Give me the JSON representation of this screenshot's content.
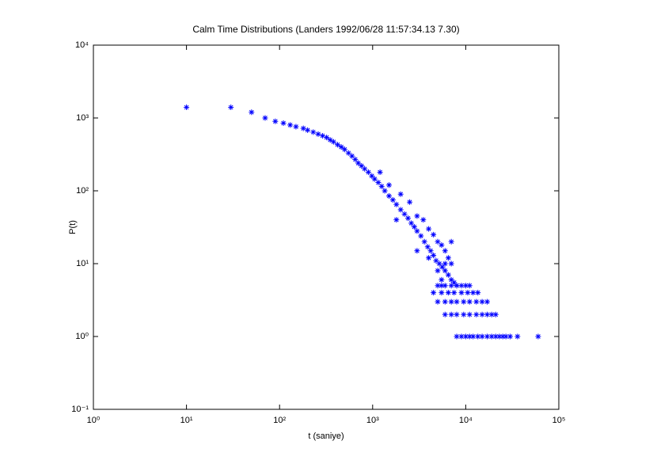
{
  "chart_data": {
    "type": "scatter",
    "title": "Calm Time Distributions (Landers 1992/06/28 11:57:34.13 7.30)",
    "xlabel": "t (saniye)",
    "ylabel": "P(t)",
    "xscale": "log",
    "yscale": "log",
    "grid": false,
    "color": "#0000ff",
    "marker": "asterisk",
    "xlim": [
      1,
      100000
    ],
    "ylim": [
      0.1,
      10000
    ],
    "xticks": [
      {
        "value": 1,
        "label": "10⁰"
      },
      {
        "value": 10,
        "label": "10¹"
      },
      {
        "value": 100,
        "label": "10²"
      },
      {
        "value": 1000,
        "label": "10³"
      },
      {
        "value": 10000,
        "label": "10⁴"
      },
      {
        "value": 100000,
        "label": "10⁵"
      }
    ],
    "yticks": [
      {
        "value": 0.1,
        "label": "10⁻¹"
      },
      {
        "value": 1,
        "label": "10⁰"
      },
      {
        "value": 10,
        "label": "10¹"
      },
      {
        "value": 100,
        "label": "10²"
      },
      {
        "value": 1000,
        "label": "10³"
      },
      {
        "value": 10000,
        "label": "10⁴"
      }
    ],
    "x": [
      10,
      30,
      50,
      70,
      90,
      110,
      130,
      150,
      180,
      200,
      230,
      260,
      290,
      320,
      350,
      380,
      420,
      460,
      500,
      550,
      600,
      650,
      700,
      760,
      820,
      900,
      980,
      1050,
      1150,
      1250,
      1350,
      1500,
      1650,
      1800,
      2000,
      2200,
      2400,
      2600,
      2800,
      3000,
      3300,
      3600,
      3900,
      4200,
      4500,
      4800,
      5200,
      5600,
      6000,
      6500,
      7000,
      7500,
      8000,
      1200,
      1500,
      2000,
      2500,
      3000,
      3500,
      4000,
      4500,
      5000,
      5500,
      6000,
      6500,
      7000,
      1800,
      3000,
      4000,
      5000,
      6000,
      7000,
      5500,
      5000,
      5500,
      6000,
      7000,
      8000,
      9000,
      10000,
      11000,
      4500,
      5500,
      6500,
      7500,
      9000,
      10500,
      12000,
      13500,
      5000,
      6000,
      7000,
      8000,
      9500,
      11000,
      13000,
      15000,
      17000,
      6000,
      7000,
      8000,
      9500,
      11000,
      13000,
      15000,
      17000,
      19000,
      21000,
      8000,
      9000,
      10000,
      11000,
      12000,
      13500,
      15000,
      17000,
      19000,
      21000,
      23000,
      25000,
      27000,
      30000,
      36000,
      60000
    ],
    "y": [
      1400,
      1400,
      1200,
      1000,
      900,
      850,
      800,
      760,
      720,
      680,
      640,
      600,
      570,
      540,
      500,
      470,
      430,
      400,
      370,
      330,
      300,
      270,
      240,
      220,
      200,
      180,
      160,
      145,
      130,
      115,
      100,
      85,
      75,
      65,
      55,
      48,
      42,
      36,
      32,
      28,
      24,
      20,
      17,
      15,
      13,
      11,
      10,
      9,
      8,
      7,
      6,
      5.5,
      5,
      180,
      120,
      90,
      70,
      45,
      40,
      30,
      25,
      20,
      18,
      15,
      12,
      10,
      40,
      15,
      12,
      8,
      10,
      20,
      6,
      5,
      5,
      5,
      5,
      5,
      5,
      5,
      5,
      4,
      4,
      4,
      4,
      4,
      4,
      4,
      4,
      3,
      3,
      3,
      3,
      3,
      3,
      3,
      3,
      3,
      2,
      2,
      2,
      2,
      2,
      2,
      2,
      2,
      2,
      2,
      1,
      1,
      1,
      1,
      1,
      1,
      1,
      1,
      1,
      1,
      1,
      1,
      1,
      1,
      1,
      1
    ]
  }
}
